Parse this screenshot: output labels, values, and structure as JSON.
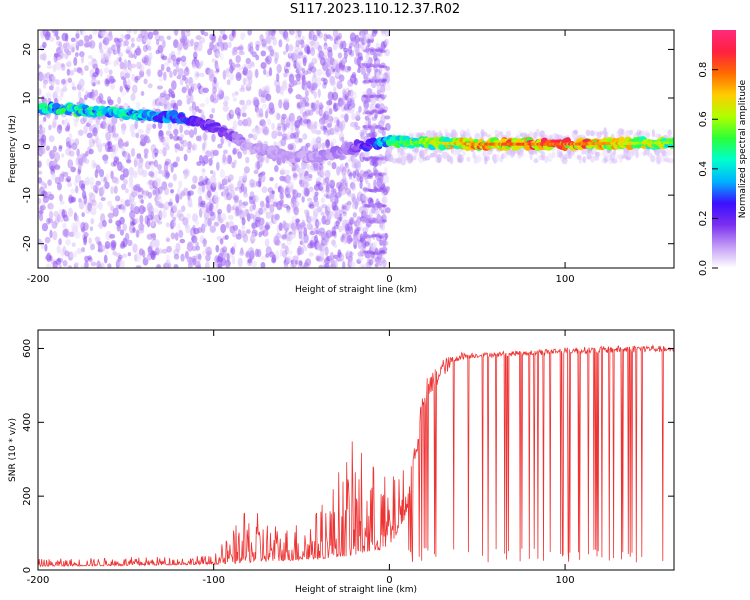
{
  "figure": {
    "title": "S117.2023.110.12.37.R02"
  },
  "chart_data": [
    {
      "type": "heatmap",
      "xlabel": "Height of straight line (km)",
      "ylabel": "Frequency (Hz)",
      "xlim": [
        -200,
        162
      ],
      "ylim": [
        -25,
        24
      ],
      "x_ticks": [
        -200,
        -100,
        0,
        100
      ],
      "y_ticks": [
        -20,
        -10,
        0,
        10,
        20
      ],
      "colorbar": {
        "label": "Normalized spectral amplitude",
        "range": [
          0,
          0.96
        ],
        "ticks": [
          0.0,
          0.2,
          0.4,
          0.6,
          0.8
        ],
        "colormap": [
          "#ffffff",
          "#c29bf5",
          "#7a2ff0",
          "#3a10ff",
          "#00b4ff",
          "#00ffcc",
          "#2cff38",
          "#b0ff00",
          "#ffcc00",
          "#ff6a00",
          "#ff2040",
          "#ff2a7a"
        ]
      },
      "ridge": [
        {
          "x": -200,
          "y": 8,
          "amplitude": 0.45
        },
        {
          "x": -180,
          "y": 7.5,
          "amplitude": 0.5
        },
        {
          "x": -160,
          "y": 7,
          "amplitude": 0.45
        },
        {
          "x": -140,
          "y": 6.5,
          "amplitude": 0.45
        },
        {
          "x": -120,
          "y": 6,
          "amplitude": 0.3
        },
        {
          "x": -100,
          "y": 4,
          "amplitude": 0.2
        },
        {
          "x": -80,
          "y": 0,
          "amplitude": 0.1
        },
        {
          "x": -60,
          "y": -2,
          "amplitude": 0.1
        },
        {
          "x": -40,
          "y": -2,
          "amplitude": 0.1
        },
        {
          "x": -20,
          "y": 0,
          "amplitude": 0.15
        },
        {
          "x": 0,
          "y": 1,
          "amplitude": 0.5
        },
        {
          "x": 50,
          "y": 0.5,
          "amplitude": 0.8
        },
        {
          "x": 100,
          "y": 0.5,
          "amplitude": 0.85
        },
        {
          "x": 160,
          "y": 0.8,
          "amplitude": 0.6
        }
      ]
    },
    {
      "type": "line",
      "xlabel": "Height of straight line (km)",
      "ylabel": "SNR (10 * v/v)",
      "xlim": [
        -200,
        162
      ],
      "ylim": [
        0,
        650
      ],
      "x_ticks": [
        -200,
        -100,
        0,
        100
      ],
      "y_ticks": [
        0,
        200,
        400,
        600
      ],
      "color": "#ee3333",
      "envelope": {
        "x": [
          -200,
          -150,
          -100,
          -80,
          -60,
          -40,
          -20,
          0,
          10,
          20,
          30,
          40,
          50,
          100,
          150,
          162
        ],
        "baseline": [
          10,
          12,
          15,
          20,
          25,
          30,
          40,
          60,
          150,
          430,
          520,
          570,
          575,
          585,
          590,
          590
        ],
        "peak": [
          30,
          35,
          40,
          170,
          120,
          170,
          360,
          250,
          290,
          600,
          620,
          610,
          600,
          620,
          630,
          610
        ]
      }
    }
  ]
}
